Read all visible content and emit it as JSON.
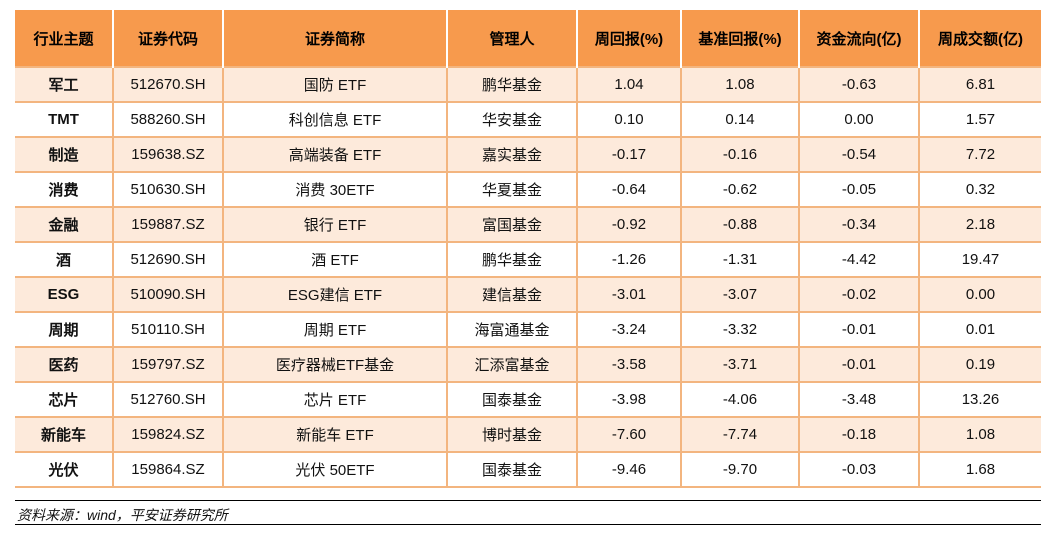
{
  "headers": [
    "行业主题",
    "证券代码",
    "证券简称",
    "管理人",
    "周回报(%)",
    "基准回报(%)",
    "资金流向(亿)",
    "周成交额(亿)"
  ],
  "rows": [
    [
      "军工",
      "512670.SH",
      "国防 ETF",
      "鹏华基金",
      "1.04",
      "1.08",
      "-0.63",
      "6.81"
    ],
    [
      "TMT",
      "588260.SH",
      "科创信息 ETF",
      "华安基金",
      "0.10",
      "0.14",
      "0.00",
      "1.57"
    ],
    [
      "制造",
      "159638.SZ",
      "高端装备 ETF",
      "嘉实基金",
      "-0.17",
      "-0.16",
      "-0.54",
      "7.72"
    ],
    [
      "消费",
      "510630.SH",
      "消费 30ETF",
      "华夏基金",
      "-0.64",
      "-0.62",
      "-0.05",
      "0.32"
    ],
    [
      "金融",
      "159887.SZ",
      "银行 ETF",
      "富国基金",
      "-0.92",
      "-0.88",
      "-0.34",
      "2.18"
    ],
    [
      "酒",
      "512690.SH",
      "酒 ETF",
      "鹏华基金",
      "-1.26",
      "-1.31",
      "-4.42",
      "19.47"
    ],
    [
      "ESG",
      "510090.SH",
      "ESG建信 ETF",
      "建信基金",
      "-3.01",
      "-3.07",
      "-0.02",
      "0.00"
    ],
    [
      "周期",
      "510110.SH",
      "周期 ETF",
      "海富通基金",
      "-3.24",
      "-3.32",
      "-0.01",
      "0.01"
    ],
    [
      "医药",
      "159797.SZ",
      "医疗器械ETF基金",
      "汇添富基金",
      "-3.58",
      "-3.71",
      "-0.01",
      "0.19"
    ],
    [
      "芯片",
      "512760.SH",
      "芯片 ETF",
      "国泰基金",
      "-3.98",
      "-4.06",
      "-3.48",
      "13.26"
    ],
    [
      "新能车",
      "159824.SZ",
      "新能车 ETF",
      "博时基金",
      "-7.60",
      "-7.74",
      "-0.18",
      "1.08"
    ],
    [
      "光伏",
      "159864.SZ",
      "光伏 50ETF",
      "国泰基金",
      "-9.46",
      "-9.70",
      "-0.03",
      "1.68"
    ]
  ],
  "source": "资料来源：wind，平安证券研究所",
  "colors": {
    "header_bg": "#f79a4d",
    "stripe_bg": "#fdeadb",
    "border": "#f3b57f"
  }
}
